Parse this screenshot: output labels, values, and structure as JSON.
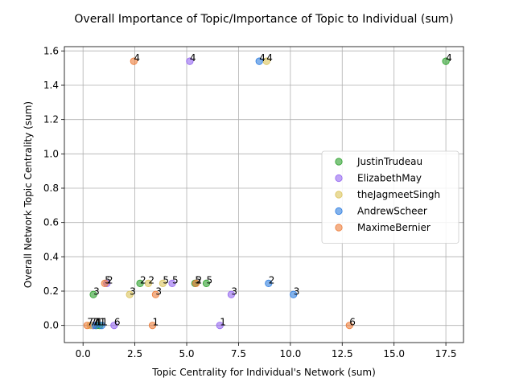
{
  "chart_data": {
    "type": "scatter",
    "title": "Overall Importance of Topic/Importance of Topic to Individual (sum)",
    "xlabel": "Topic Centrality for Individual's Network (sum)",
    "ylabel": "Overall Network Topic Centrality (sum)",
    "xlim": [
      -0.9,
      18.35
    ],
    "ylim": [
      -0.1,
      1.625
    ],
    "xticks": [
      0.0,
      2.5,
      5.0,
      7.5,
      10.0,
      12.5,
      15.0,
      17.5
    ],
    "xtick_labels": [
      "0.0",
      "2.5",
      "5.0",
      "7.5",
      "10.0",
      "12.5",
      "15.0",
      "17.5"
    ],
    "yticks": [
      0.0,
      0.2,
      0.4,
      0.6,
      0.8,
      1.0,
      1.2,
      1.4,
      1.6
    ],
    "ytick_labels": [
      "0.0",
      "0.2",
      "0.4",
      "0.6",
      "0.8",
      "1.0",
      "1.2",
      "1.4",
      "1.6"
    ],
    "grid": true,
    "legend_position": "center-right",
    "series": [
      {
        "name": "JustinTrudeau",
        "color": "#2ca02c",
        "points": [
          {
            "x": 17.5,
            "y": 1.54,
            "label": "4"
          },
          {
            "x": 0.5,
            "y": 0.18,
            "label": "3"
          },
          {
            "x": 2.75,
            "y": 0.245,
            "label": "2"
          },
          {
            "x": 5.95,
            "y": 0.245,
            "label": "5"
          },
          {
            "x": 5.4,
            "y": 0.245,
            "label": "5"
          },
          {
            "x": 0.5,
            "y": 0.0,
            "label": "7"
          },
          {
            "x": 0.65,
            "y": 0.0,
            "label": "1"
          },
          {
            "x": 0.8,
            "y": 0.0,
            "label": "1"
          }
        ]
      },
      {
        "name": "ElizabethMay",
        "color": "#9467f0",
        "points": [
          {
            "x": 5.15,
            "y": 1.54,
            "label": "4"
          },
          {
            "x": 7.15,
            "y": 0.18,
            "label": "3"
          },
          {
            "x": 4.3,
            "y": 0.245,
            "label": "5"
          },
          {
            "x": 1.15,
            "y": 0.245,
            "label": "2"
          },
          {
            "x": 6.6,
            "y": 0.0,
            "label": "1"
          },
          {
            "x": 1.5,
            "y": 0.0,
            "label": "6"
          },
          {
            "x": 0.45,
            "y": 0.0,
            "label": "7"
          }
        ]
      },
      {
        "name": "theJagmeetSingh",
        "color": "#dbc35a",
        "points": [
          {
            "x": 8.85,
            "y": 1.54,
            "label": "4"
          },
          {
            "x": 2.25,
            "y": 0.18,
            "label": "3"
          },
          {
            "x": 3.15,
            "y": 0.245,
            "label": "2"
          },
          {
            "x": 3.85,
            "y": 0.245,
            "label": "5"
          },
          {
            "x": 0.35,
            "y": 0.0,
            "label": "7"
          }
        ]
      },
      {
        "name": "AndrewScheer",
        "color": "#2f7ee0",
        "points": [
          {
            "x": 8.5,
            "y": 1.54,
            "label": "4"
          },
          {
            "x": 10.15,
            "y": 0.18,
            "label": "3"
          },
          {
            "x": 8.95,
            "y": 0.245,
            "label": "2"
          },
          {
            "x": 0.9,
            "y": 0.0,
            "label": "1"
          },
          {
            "x": 0.6,
            "y": 0.0,
            "label": "1"
          }
        ]
      },
      {
        "name": "MaximeBernier",
        "color": "#ed7d3a",
        "points": [
          {
            "x": 2.45,
            "y": 1.54,
            "label": "4"
          },
          {
            "x": 3.5,
            "y": 0.18,
            "label": "3"
          },
          {
            "x": 5.45,
            "y": 0.245,
            "label": "2"
          },
          {
            "x": 1.05,
            "y": 0.245,
            "label": "5"
          },
          {
            "x": 12.85,
            "y": 0.0,
            "label": "6"
          },
          {
            "x": 3.35,
            "y": 0.0,
            "label": "1"
          },
          {
            "x": 0.2,
            "y": 0.0,
            "label": "7"
          }
        ]
      }
    ]
  }
}
